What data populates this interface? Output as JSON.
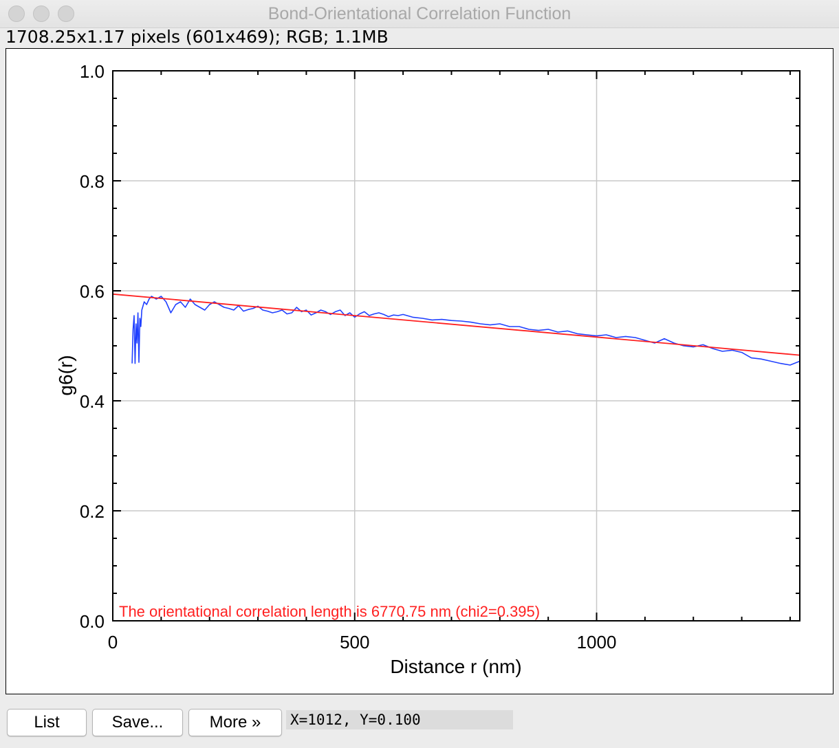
{
  "window": {
    "title": "Bond-Orientational Correlation Function",
    "info": "1708.25x1.17 pixels (601x469); RGB; 1.1MB"
  },
  "buttons": {
    "list": "List",
    "save": "Save...",
    "more": "More »"
  },
  "status": {
    "coords": "X=1012, Y=0.100"
  },
  "colors": {
    "data_series": "#2040ff",
    "fit_line": "#ff2020",
    "grid": "#c8c8c8",
    "annotation": "#ff2020"
  },
  "chart_data": {
    "type": "line",
    "title": "",
    "xlabel": "Distance r (nm)",
    "ylabel": "g6(r)",
    "xlim": [
      0,
      1420
    ],
    "ylim": [
      0.0,
      1.0
    ],
    "xticks": [
      0,
      500,
      1000
    ],
    "yticks": [
      0.0,
      0.2,
      0.4,
      0.6,
      0.8,
      1.0
    ],
    "xtick_labels": [
      "0",
      "500",
      "1000"
    ],
    "ytick_labels": [
      "0.0",
      "0.2",
      "0.4",
      "0.6",
      "0.8",
      "1.0"
    ],
    "grid": true,
    "annotation": "The orientational correlation length is 6770.75 nm (chi2=0.395)",
    "series": [
      {
        "name": "",
        "color": "#2040ff",
        "x": [
          40,
          42,
          44,
          46,
          48,
          50,
          52,
          54,
          56,
          58,
          60,
          65,
          70,
          75,
          80,
          90,
          100,
          110,
          120,
          130,
          140,
          150,
          160,
          170,
          180,
          190,
          200,
          210,
          220,
          230,
          240,
          250,
          260,
          270,
          280,
          290,
          300,
          310,
          320,
          330,
          340,
          350,
          360,
          370,
          380,
          390,
          400,
          410,
          420,
          430,
          440,
          450,
          460,
          470,
          480,
          490,
          500,
          510,
          520,
          530,
          540,
          550,
          560,
          570,
          580,
          590,
          600,
          620,
          640,
          660,
          680,
          700,
          720,
          740,
          760,
          780,
          800,
          820,
          840,
          860,
          880,
          900,
          920,
          940,
          960,
          980,
          1000,
          1020,
          1040,
          1060,
          1080,
          1100,
          1120,
          1140,
          1160,
          1180,
          1200,
          1220,
          1240,
          1260,
          1280,
          1300,
          1320,
          1340,
          1360,
          1380,
          1400,
          1420
        ],
        "y": [
          0.468,
          0.53,
          0.555,
          0.468,
          0.54,
          0.505,
          0.56,
          0.47,
          0.55,
          0.535,
          0.565,
          0.58,
          0.575,
          0.585,
          0.59,
          0.585,
          0.59,
          0.58,
          0.56,
          0.575,
          0.58,
          0.57,
          0.585,
          0.575,
          0.57,
          0.565,
          0.575,
          0.58,
          0.575,
          0.57,
          0.568,
          0.565,
          0.573,
          0.563,
          0.566,
          0.568,
          0.572,
          0.565,
          0.563,
          0.56,
          0.562,
          0.565,
          0.558,
          0.56,
          0.57,
          0.562,
          0.565,
          0.556,
          0.56,
          0.565,
          0.562,
          0.557,
          0.562,
          0.565,
          0.555,
          0.56,
          0.552,
          0.558,
          0.562,
          0.555,
          0.558,
          0.56,
          0.557,
          0.553,
          0.556,
          0.555,
          0.557,
          0.552,
          0.55,
          0.547,
          0.548,
          0.546,
          0.545,
          0.543,
          0.54,
          0.538,
          0.54,
          0.535,
          0.535,
          0.53,
          0.528,
          0.53,
          0.525,
          0.527,
          0.522,
          0.52,
          0.518,
          0.52,
          0.515,
          0.517,
          0.515,
          0.51,
          0.505,
          0.513,
          0.505,
          0.5,
          0.498,
          0.502,
          0.495,
          0.49,
          0.492,
          0.488,
          0.478,
          0.476,
          0.472,
          0.468,
          0.465,
          0.472
        ]
      },
      {
        "name": "",
        "color": "#ff2020",
        "x": [
          0,
          1420
        ],
        "y": [
          0.594,
          0.483
        ]
      }
    ]
  }
}
